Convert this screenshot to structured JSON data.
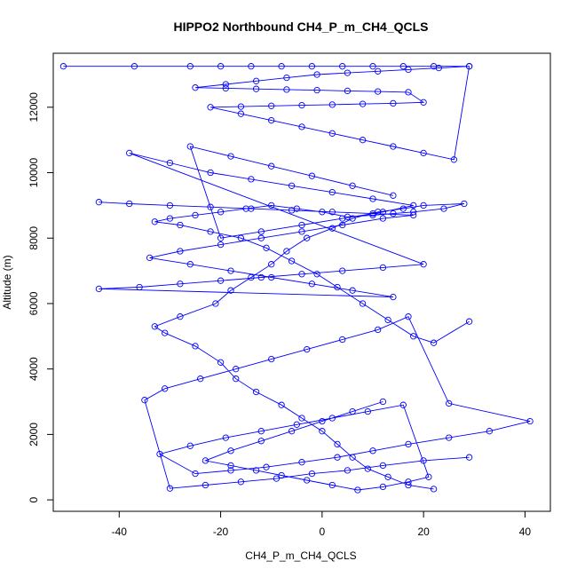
{
  "chart_data": {
    "type": "line",
    "title": "HIPPO2 Northbound CH4_P_m_CH4_QCLS",
    "xlabel": "CH4_P_m_CH4_QCLS",
    "ylabel": "Altitude (m)",
    "xlim": [
      -53,
      45
    ],
    "ylim": [
      -350,
      13650
    ],
    "x_ticks": [
      -40,
      -20,
      0,
      20,
      40
    ],
    "x_tick_labels": [
      "-40",
      "-20",
      "0",
      "20",
      "40"
    ],
    "y_ticks": [
      0,
      2000,
      4000,
      6000,
      8000,
      10000,
      12000
    ],
    "y_tick_labels": [
      "0",
      "2000",
      "4000",
      "6000",
      "8000",
      "10000",
      "12000"
    ],
    "grid": false,
    "markers": "open-circle",
    "series_color": "#0000ff",
    "series": [
      {
        "x": [
          22,
          17,
          13,
          9,
          6,
          3,
          0,
          -4,
          -8,
          -13,
          -17,
          -20,
          -25,
          -31,
          -33,
          -28,
          -21,
          -18,
          -14,
          -10,
          -7,
          -3,
          2,
          6,
          11,
          16,
          20,
          28,
          24,
          18,
          14,
          10,
          5,
          0,
          -5,
          -10,
          -15,
          -20,
          -25,
          -30,
          -33,
          -28,
          -22,
          -16,
          -11,
          -6,
          -1,
          3,
          8,
          13,
          18,
          22,
          29
        ],
        "y": [
          330,
          450,
          700,
          950,
          1300,
          1700,
          2100,
          2500,
          2900,
          3300,
          3700,
          4200,
          4700,
          5100,
          5300,
          5600,
          6000,
          6400,
          6800,
          7200,
          7600,
          8000,
          8300,
          8600,
          8800,
          8900,
          9000,
          9050,
          8900,
          8800,
          8750,
          8700,
          8650,
          8800,
          8900,
          9000,
          8900,
          8800,
          8700,
          8600,
          8500,
          8400,
          8200,
          8000,
          7700,
          7300,
          6900,
          6500,
          6000,
          5500,
          5000,
          4800,
          5450
        ]
      },
      {
        "x": [
          29,
          20,
          12,
          5,
          -2,
          -9,
          -16,
          -23,
          -30,
          -35,
          -31,
          -24,
          -17,
          -10,
          -3,
          4,
          11,
          17,
          25,
          41,
          33,
          25,
          17,
          10,
          3,
          -4,
          -11,
          -18,
          -25,
          -32,
          -26,
          -19,
          -12,
          -5,
          2,
          9,
          16,
          21,
          17,
          12,
          7,
          2,
          -3,
          -8,
          -13,
          -18,
          -23,
          -18,
          -12,
          -6,
          0,
          6,
          12
        ],
        "y": [
          1300,
          1200,
          1050,
          900,
          800,
          650,
          550,
          450,
          350,
          3050,
          3400,
          3700,
          4000,
          4300,
          4600,
          4900,
          5200,
          5600,
          2950,
          2400,
          2100,
          1900,
          1700,
          1500,
          1300,
          1150,
          1000,
          900,
          800,
          1400,
          1650,
          1900,
          2100,
          2300,
          2500,
          2700,
          2900,
          700,
          550,
          400,
          300,
          450,
          600,
          750,
          900,
          1050,
          1200,
          1500,
          1800,
          2100,
          2400,
          2700,
          3000
        ]
      },
      {
        "x": [
          -44,
          -38,
          -30,
          -22,
          -14,
          -6,
          2,
          10,
          18,
          12,
          4,
          -4,
          -12,
          -20,
          -28,
          -34,
          -26,
          -18,
          -10,
          -2,
          6,
          14,
          -44,
          -36,
          -28,
          -20,
          -12,
          -4,
          4,
          12,
          20,
          -38,
          -30,
          -22,
          -14,
          -6,
          2,
          10,
          18,
          12,
          4,
          -4,
          -12,
          -20,
          -26,
          -18,
          -10,
          -2,
          6,
          14
        ],
        "y": [
          9100,
          9050,
          9000,
          8950,
          8900,
          8850,
          8800,
          8750,
          8700,
          8600,
          8400,
          8200,
          8000,
          7800,
          7600,
          7400,
          7200,
          7000,
          6800,
          6600,
          6400,
          6200,
          6450,
          6500,
          6600,
          6700,
          6800,
          6900,
          7000,
          7100,
          7200,
          10600,
          10300,
          10000,
          9800,
          9600,
          9400,
          9200,
          9000,
          8800,
          8600,
          8400,
          8200,
          8000,
          10800,
          10500,
          10200,
          9900,
          9600,
          9300
        ]
      },
      {
        "x": [
          -51,
          -37,
          -26,
          -20,
          -14,
          -8,
          -2,
          4,
          10,
          16,
          22,
          29,
          23,
          17,
          11,
          5,
          -1,
          -7,
          -13,
          -19,
          -25,
          -19,
          -13,
          -7,
          -1,
          5,
          11,
          17,
          20,
          14,
          8,
          2,
          -4,
          -10,
          -16,
          -22,
          -16,
          -10,
          -4,
          2,
          8,
          14,
          20,
          26,
          29
        ],
        "y": [
          13250,
          13250,
          13250,
          13250,
          13250,
          13250,
          13250,
          13250,
          13250,
          13250,
          13250,
          13250,
          13200,
          13150,
          13100,
          13050,
          13000,
          12900,
          12800,
          12700,
          12600,
          12580,
          12560,
          12540,
          12520,
          12500,
          12480,
          12460,
          12150,
          12120,
          12100,
          12080,
          12060,
          12040,
          12020,
          12000,
          11800,
          11600,
          11400,
          11200,
          11000,
          10800,
          10600,
          10400,
          13250
        ]
      }
    ]
  }
}
